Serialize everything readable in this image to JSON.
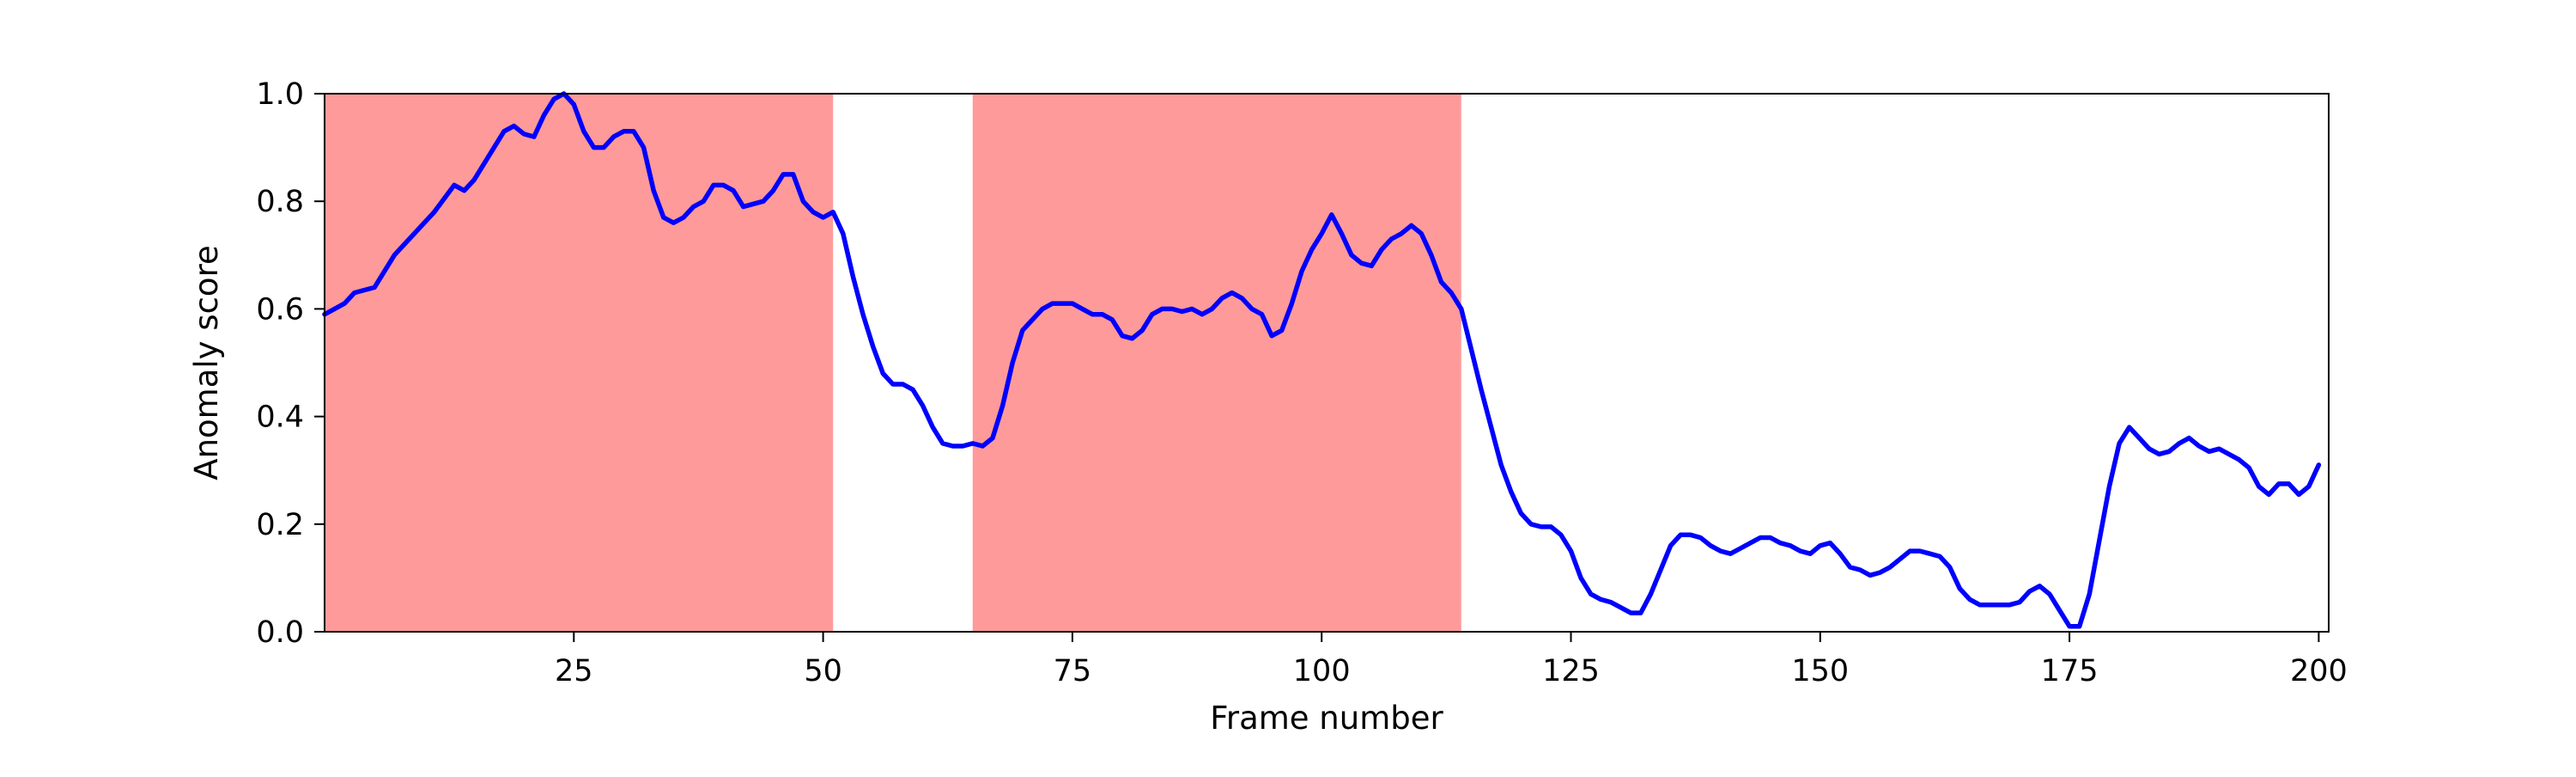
{
  "chart_data": {
    "type": "line",
    "title": "",
    "xlabel": "Frame number",
    "ylabel": "Anomaly score",
    "xlim": [
      0,
      201
    ],
    "ylim": [
      0.0,
      1.0
    ],
    "xticks": [
      25,
      50,
      75,
      100,
      125,
      150,
      175,
      200
    ],
    "xtick_labels": [
      "25",
      "50",
      "75",
      "100",
      "125",
      "150",
      "175",
      "200"
    ],
    "yticks": [
      0.0,
      0.2,
      0.4,
      0.6,
      0.8,
      1.0
    ],
    "ytick_labels": [
      "0.0",
      "0.2",
      "0.4",
      "0.6",
      "0.8",
      "1.0"
    ],
    "grid": false,
    "legend": "none",
    "colors": {
      "line": "#0000ff",
      "region": "#ff9a9a"
    },
    "shaded_regions": [
      {
        "x_start": 0,
        "x_end": 51
      },
      {
        "x_start": 65,
        "x_end": 114
      }
    ],
    "series": [
      {
        "points": [
          [
            0,
            0.59
          ],
          [
            2,
            0.61
          ],
          [
            3,
            0.63
          ],
          [
            5,
            0.64
          ],
          [
            7,
            0.7
          ],
          [
            9,
            0.74
          ],
          [
            11,
            0.78
          ],
          [
            13,
            0.83
          ],
          [
            14,
            0.82
          ],
          [
            15,
            0.84
          ],
          [
            17,
            0.9
          ],
          [
            18,
            0.93
          ],
          [
            19,
            0.94
          ],
          [
            20,
            0.925
          ],
          [
            21,
            0.92
          ],
          [
            22,
            0.96
          ],
          [
            23,
            0.99
          ],
          [
            24,
            1.0
          ],
          [
            25,
            0.98
          ],
          [
            26,
            0.93
          ],
          [
            27,
            0.9
          ],
          [
            28,
            0.9
          ],
          [
            29,
            0.92
          ],
          [
            30,
            0.93
          ],
          [
            31,
            0.93
          ],
          [
            32,
            0.9
          ],
          [
            33,
            0.82
          ],
          [
            34,
            0.77
          ],
          [
            35,
            0.76
          ],
          [
            36,
            0.77
          ],
          [
            37,
            0.79
          ],
          [
            38,
            0.8
          ],
          [
            39,
            0.83
          ],
          [
            40,
            0.83
          ],
          [
            41,
            0.82
          ],
          [
            42,
            0.79
          ],
          [
            43,
            0.795
          ],
          [
            44,
            0.8
          ],
          [
            45,
            0.82
          ],
          [
            46,
            0.85
          ],
          [
            47,
            0.85
          ],
          [
            48,
            0.8
          ],
          [
            49,
            0.78
          ],
          [
            50,
            0.77
          ],
          [
            51,
            0.78
          ],
          [
            52,
            0.74
          ],
          [
            53,
            0.66
          ],
          [
            54,
            0.59
          ],
          [
            55,
            0.53
          ],
          [
            56,
            0.48
          ],
          [
            57,
            0.46
          ],
          [
            58,
            0.46
          ],
          [
            59,
            0.45
          ],
          [
            60,
            0.42
          ],
          [
            61,
            0.38
          ],
          [
            62,
            0.35
          ],
          [
            63,
            0.345
          ],
          [
            64,
            0.345
          ],
          [
            65,
            0.35
          ],
          [
            66,
            0.345
          ],
          [
            67,
            0.36
          ],
          [
            68,
            0.42
          ],
          [
            69,
            0.5
          ],
          [
            70,
            0.56
          ],
          [
            71,
            0.58
          ],
          [
            72,
            0.6
          ],
          [
            73,
            0.61
          ],
          [
            74,
            0.61
          ],
          [
            75,
            0.61
          ],
          [
            76,
            0.6
          ],
          [
            77,
            0.59
          ],
          [
            78,
            0.59
          ],
          [
            79,
            0.58
          ],
          [
            80,
            0.55
          ],
          [
            81,
            0.545
          ],
          [
            82,
            0.56
          ],
          [
            83,
            0.59
          ],
          [
            84,
            0.6
          ],
          [
            85,
            0.6
          ],
          [
            86,
            0.595
          ],
          [
            87,
            0.6
          ],
          [
            88,
            0.59
          ],
          [
            89,
            0.6
          ],
          [
            90,
            0.62
          ],
          [
            91,
            0.63
          ],
          [
            92,
            0.62
          ],
          [
            93,
            0.6
          ],
          [
            94,
            0.59
          ],
          [
            95,
            0.55
          ],
          [
            96,
            0.56
          ],
          [
            97,
            0.61
          ],
          [
            98,
            0.67
          ],
          [
            99,
            0.71
          ],
          [
            100,
            0.74
          ],
          [
            101,
            0.775
          ],
          [
            102,
            0.74
          ],
          [
            103,
            0.7
          ],
          [
            104,
            0.685
          ],
          [
            105,
            0.68
          ],
          [
            106,
            0.71
          ],
          [
            107,
            0.73
          ],
          [
            108,
            0.74
          ],
          [
            109,
            0.755
          ],
          [
            110,
            0.74
          ],
          [
            111,
            0.7
          ],
          [
            112,
            0.65
          ],
          [
            113,
            0.63
          ],
          [
            114,
            0.6
          ],
          [
            116,
            0.45
          ],
          [
            117,
            0.38
          ],
          [
            118,
            0.31
          ],
          [
            119,
            0.26
          ],
          [
            120,
            0.22
          ],
          [
            121,
            0.2
          ],
          [
            122,
            0.195
          ],
          [
            123,
            0.195
          ],
          [
            124,
            0.18
          ],
          [
            125,
            0.15
          ],
          [
            126,
            0.1
          ],
          [
            127,
            0.07
          ],
          [
            128,
            0.06
          ],
          [
            129,
            0.055
          ],
          [
            130,
            0.045
          ],
          [
            131,
            0.035
          ],
          [
            132,
            0.035
          ],
          [
            133,
            0.07
          ],
          [
            134,
            0.115
          ],
          [
            135,
            0.16
          ],
          [
            136,
            0.18
          ],
          [
            137,
            0.18
          ],
          [
            138,
            0.175
          ],
          [
            139,
            0.16
          ],
          [
            140,
            0.15
          ],
          [
            141,
            0.145
          ],
          [
            142,
            0.155
          ],
          [
            143,
            0.165
          ],
          [
            144,
            0.175
          ],
          [
            145,
            0.175
          ],
          [
            146,
            0.165
          ],
          [
            147,
            0.16
          ],
          [
            148,
            0.15
          ],
          [
            149,
            0.145
          ],
          [
            150,
            0.16
          ],
          [
            151,
            0.165
          ],
          [
            152,
            0.145
          ],
          [
            153,
            0.12
          ],
          [
            154,
            0.115
          ],
          [
            155,
            0.105
          ],
          [
            156,
            0.11
          ],
          [
            157,
            0.12
          ],
          [
            158,
            0.135
          ],
          [
            159,
            0.15
          ],
          [
            160,
            0.15
          ],
          [
            161,
            0.145
          ],
          [
            162,
            0.14
          ],
          [
            163,
            0.12
          ],
          [
            164,
            0.08
          ],
          [
            165,
            0.06
          ],
          [
            166,
            0.05
          ],
          [
            167,
            0.05
          ],
          [
            168,
            0.05
          ],
          [
            169,
            0.05
          ],
          [
            170,
            0.055
          ],
          [
            171,
            0.075
          ],
          [
            172,
            0.085
          ],
          [
            173,
            0.07
          ],
          [
            174,
            0.04
          ],
          [
            175,
            0.01
          ],
          [
            176,
            0.01
          ],
          [
            177,
            0.07
          ],
          [
            178,
            0.17
          ],
          [
            179,
            0.27
          ],
          [
            180,
            0.35
          ],
          [
            181,
            0.38
          ],
          [
            182,
            0.36
          ],
          [
            183,
            0.34
          ],
          [
            184,
            0.33
          ],
          [
            185,
            0.335
          ],
          [
            186,
            0.35
          ],
          [
            187,
            0.36
          ],
          [
            188,
            0.345
          ],
          [
            189,
            0.335
          ],
          [
            190,
            0.34
          ],
          [
            191,
            0.33
          ],
          [
            192,
            0.32
          ],
          [
            193,
            0.305
          ],
          [
            194,
            0.27
          ],
          [
            195,
            0.255
          ],
          [
            196,
            0.275
          ],
          [
            197,
            0.275
          ],
          [
            198,
            0.255
          ],
          [
            199,
            0.27
          ],
          [
            200,
            0.31
          ]
        ]
      }
    ]
  }
}
